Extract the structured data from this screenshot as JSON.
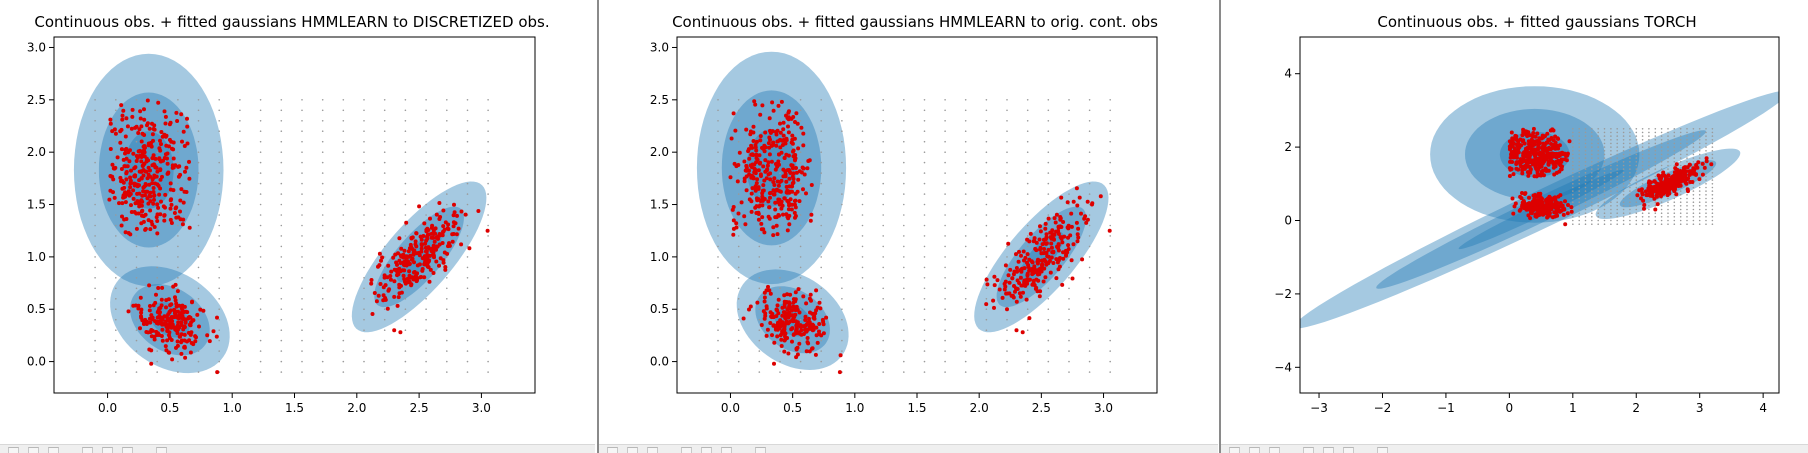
{
  "colors": {
    "ellipse": "#1f77b4",
    "point": "#dd0000",
    "grid_dot": "#9a9a9a",
    "axis": "#000000"
  },
  "icons": [
    "home-icon",
    "back-icon",
    "forward-icon",
    "pan-icon",
    "zoom-icon",
    "configure-icon",
    "save-icon"
  ],
  "chart_data": [
    {
      "type": "scatter",
      "title": "Continuous obs. + fitted gaussians HMMLEARN to DISCRETIZED  obs.",
      "xlabel": "",
      "ylabel": "",
      "xlim": [
        -0.43,
        3.43
      ],
      "ylim": [
        -0.3,
        3.1
      ],
      "xticks": [
        "0.0",
        "0.5",
        "1.0",
        "1.5",
        "2.0",
        "2.5",
        "3.0"
      ],
      "yticks": [
        "0.0",
        "0.5",
        "1.0",
        "1.5",
        "2.0",
        "2.5",
        "3.0"
      ],
      "grid_points": {
        "x_from": -0.1,
        "x_to": 3.2,
        "x_step": 0.166,
        "y_from": -0.1,
        "y_to": 2.5,
        "y_step": 0.1
      },
      "clusters": [
        {
          "mean": [
            0.33,
            1.8
          ],
          "spread": [
            0.18,
            0.33
          ],
          "rho": 0.0,
          "count": 330,
          "box": [
            0.0,
            0.66,
            1.2,
            2.5
          ]
        },
        {
          "mean": [
            0.5,
            0.38
          ],
          "spread": [
            0.14,
            0.15
          ],
          "rho": -0.3,
          "count": 210,
          "box": [
            0.1,
            0.9,
            -0.1,
            0.75
          ]
        },
        {
          "mean": [
            2.5,
            1.0
          ],
          "spread": [
            0.18,
            0.23
          ],
          "rho": 0.75,
          "count": 250,
          "box": [
            2.05,
            3.1,
            0.28,
            1.7
          ]
        }
      ],
      "outliers": [
        [
          0.88,
          -0.1
        ],
        [
          0.35,
          -0.02
        ],
        [
          3.05,
          1.25
        ],
        [
          2.3,
          0.3
        ],
        [
          2.35,
          0.28
        ]
      ],
      "gaussians": [
        {
          "mean": [
            0.33,
            1.83
          ],
          "sx": 0.2,
          "sy": 0.37,
          "rho": 0.0
        },
        {
          "mean": [
            0.5,
            0.4
          ],
          "sx": 0.16,
          "sy": 0.17,
          "rho": -0.3
        },
        {
          "mean": [
            2.5,
            1.0
          ],
          "sx": 0.18,
          "sy": 0.24,
          "rho": 0.78
        }
      ]
    },
    {
      "type": "scatter",
      "title": "Continuous obs. + fitted gaussians HMMLEARN to orig. cont. obs",
      "xlabel": "",
      "ylabel": "",
      "xlim": [
        -0.43,
        3.43
      ],
      "ylim": [
        -0.3,
        3.1
      ],
      "xticks": [
        "0.0",
        "0.5",
        "1.0",
        "1.5",
        "2.0",
        "2.5",
        "3.0"
      ],
      "yticks": [
        "0.0",
        "0.5",
        "1.0",
        "1.5",
        "2.0",
        "2.5",
        "3.0"
      ],
      "grid_points": {
        "x_from": -0.1,
        "x_to": 3.2,
        "x_step": 0.166,
        "y_from": -0.1,
        "y_to": 2.5,
        "y_step": 0.1
      },
      "clusters": [
        {
          "mean": [
            0.33,
            1.8
          ],
          "spread": [
            0.18,
            0.33
          ],
          "rho": 0.0,
          "count": 330,
          "box": [
            0.0,
            0.66,
            1.2,
            2.5
          ]
        },
        {
          "mean": [
            0.5,
            0.38
          ],
          "spread": [
            0.14,
            0.15
          ],
          "rho": -0.3,
          "count": 210,
          "box": [
            0.1,
            0.9,
            -0.1,
            0.75
          ]
        },
        {
          "mean": [
            2.5,
            1.0
          ],
          "spread": [
            0.18,
            0.23
          ],
          "rho": 0.75,
          "count": 250,
          "box": [
            2.05,
            3.1,
            0.28,
            1.7
          ]
        }
      ],
      "outliers": [
        [
          0.88,
          -0.1
        ],
        [
          0.35,
          -0.02
        ],
        [
          3.05,
          1.25
        ],
        [
          2.3,
          0.3
        ],
        [
          2.35,
          0.28
        ]
      ],
      "gaussians": [
        {
          "mean": [
            0.33,
            1.85
          ],
          "sx": 0.2,
          "sy": 0.37,
          "rho": 0.0
        },
        {
          "mean": [
            0.5,
            0.4
          ],
          "sx": 0.15,
          "sy": 0.16,
          "rho": -0.3
        },
        {
          "mean": [
            2.5,
            1.0
          ],
          "sx": 0.18,
          "sy": 0.24,
          "rho": 0.78
        }
      ]
    },
    {
      "type": "scatter",
      "title": "Continuous obs. + fitted gaussians TORCH",
      "xlabel": "",
      "ylabel": "",
      "xlim": [
        -3.3,
        4.25
      ],
      "ylim": [
        -4.7,
        5.0
      ],
      "xticks": [
        "−3",
        "−2",
        "−1",
        "0",
        "1",
        "2",
        "3",
        "4"
      ],
      "yticks": [
        "−4",
        "−2",
        "0",
        "2",
        "4"
      ],
      "grid_points": {
        "x_from": 1.0,
        "x_to": 3.2,
        "x_step": 0.1,
        "y_from": -0.1,
        "y_to": 2.5,
        "y_step": 0.1
      },
      "clusters": [
        {
          "mean": [
            0.4,
            1.8
          ],
          "spread": [
            0.3,
            0.35
          ],
          "rho": 0.0,
          "count": 330,
          "box": [
            0.0,
            0.95,
            1.2,
            2.5
          ]
        },
        {
          "mean": [
            0.5,
            0.4
          ],
          "spread": [
            0.2,
            0.15
          ],
          "rho": -0.2,
          "count": 210,
          "box": [
            0.0,
            1.0,
            -0.15,
            0.75
          ]
        },
        {
          "mean": [
            2.5,
            1.0
          ],
          "spread": [
            0.25,
            0.25
          ],
          "rho": 0.8,
          "count": 250,
          "box": [
            2.0,
            3.3,
            0.3,
            1.7
          ]
        }
      ],
      "outliers": [
        [
          0.88,
          -0.1
        ],
        [
          3.05,
          1.25
        ],
        [
          2.3,
          0.3
        ]
      ],
      "gaussians": [
        {
          "mean": [
            0.4,
            1.8
          ],
          "sx": 0.55,
          "sy": 0.62,
          "rho": 0.0
        },
        {
          "mean": [
            0.5,
            0.3
          ],
          "sx": 1.3,
          "sy": 1.08,
          "rho": 0.985
        },
        {
          "mean": [
            2.5,
            1.0
          ],
          "sx": 0.38,
          "sy": 0.32,
          "rho": 0.87
        }
      ]
    }
  ]
}
